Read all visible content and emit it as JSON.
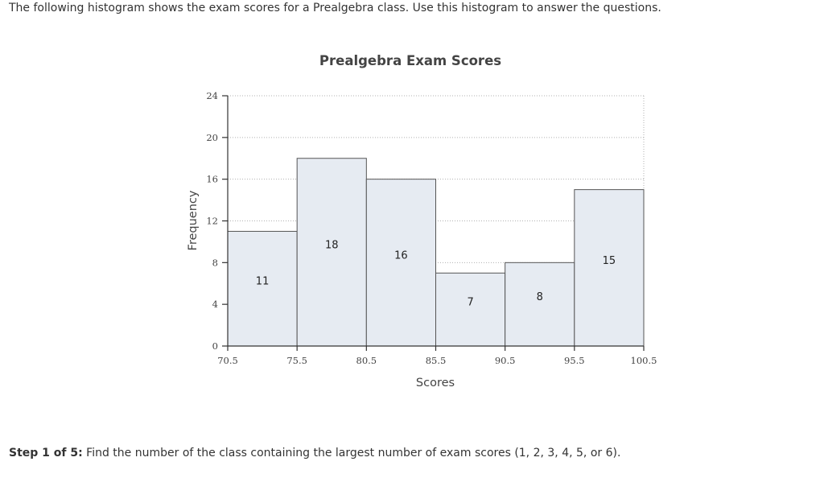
{
  "intro_text": "The following histogram shows the exam scores for a Prealgebra class. Use this histogram to answer the questions.",
  "chart_data": {
    "type": "bar",
    "title": "Prealgebra Exam Scores",
    "xlabel": "Scores",
    "ylabel": "Frequency",
    "bin_edges": [
      70.5,
      75.5,
      80.5,
      85.5,
      90.5,
      95.5,
      100.5
    ],
    "x_tick_labels": [
      "70.5",
      "75.5",
      "80.5",
      "85.5",
      "90.5",
      "95.5",
      "100.5"
    ],
    "values": [
      11,
      18,
      16,
      7,
      8,
      15
    ],
    "ylim": [
      0,
      24
    ],
    "y_ticks": [
      0,
      4,
      8,
      12,
      16,
      20,
      24
    ],
    "grid": true,
    "colors": {
      "bar_fill": "#e6ebf2",
      "bar_stroke": "#555555",
      "grid": "#b0b0b0",
      "axis": "#333333"
    }
  },
  "question": {
    "step_label": "Step 1 of 5:",
    "text": " Find the number of the class containing the largest number of exam scores (1, 2, 3, 4, 5, or 6)."
  }
}
